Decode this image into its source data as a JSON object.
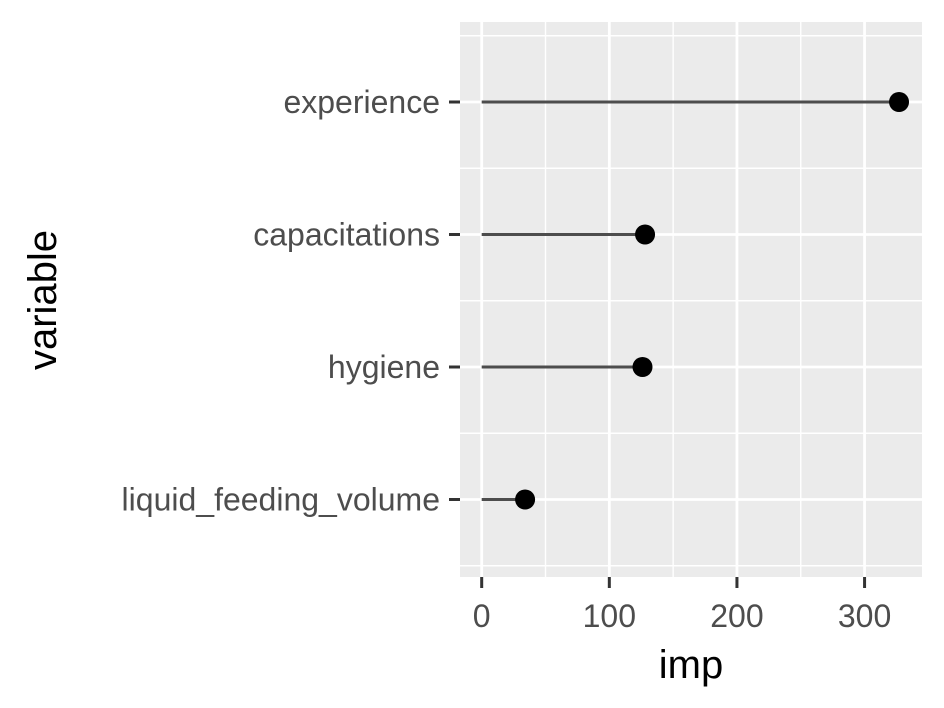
{
  "chart_data": {
    "type": "lollipop",
    "categories": [
      "experience",
      "capacitations",
      "hygiene",
      "liquid_feeding_volume"
    ],
    "values": [
      327,
      128,
      126,
      34
    ],
    "xlabel": "imp",
    "ylabel": "variable",
    "xlim": [
      -17,
      345
    ],
    "x_ticks": [
      0,
      100,
      200,
      300
    ],
    "x_minor_ticks": [
      50,
      150,
      250
    ],
    "grid": true,
    "panel_background": "#ebebeb",
    "grid_color": "#ffffff",
    "stem_color": "#4d4d4d",
    "point_color": "#000000"
  }
}
